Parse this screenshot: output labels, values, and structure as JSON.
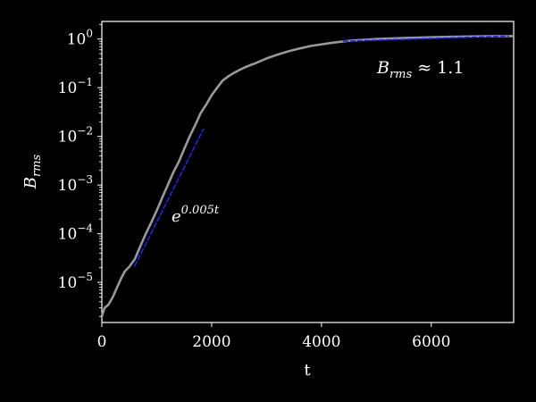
{
  "chart_data": {
    "type": "line",
    "title": "",
    "xlabel": "t",
    "ylabel": {
      "base": "B",
      "sub": "rms"
    },
    "yscale": "log",
    "xlim": [
      0,
      7500
    ],
    "ylim": [
      1.5e-06,
      2.3
    ],
    "xticks": [
      {
        "value": 0,
        "label": "0"
      },
      {
        "value": 2000,
        "label": "2000"
      },
      {
        "value": 4000,
        "label": "4000"
      },
      {
        "value": 6000,
        "label": "6000"
      }
    ],
    "yticks": [
      {
        "value": 1e-05,
        "base": "10",
        "exp": "−5"
      },
      {
        "value": 0.0001,
        "base": "10",
        "exp": "−4"
      },
      {
        "value": 0.001,
        "base": "10",
        "exp": "−3"
      },
      {
        "value": 0.01,
        "base": "10",
        "exp": "−2"
      },
      {
        "value": 0.1,
        "base": "10",
        "exp": "−1"
      },
      {
        "value": 1,
        "base": "10",
        "exp": "0"
      }
    ],
    "grid": false,
    "series": [
      {
        "color": "#999999",
        "x": [
          0,
          50,
          120,
          200,
          280,
          350,
          420,
          500,
          600,
          700,
          800,
          900,
          1000,
          1100,
          1200,
          1300,
          1400,
          1500,
          1600,
          1700,
          1800,
          1900,
          2000,
          2100,
          2200,
          2300,
          2400,
          2500,
          2600,
          2700,
          2800,
          3000,
          3200,
          3400,
          3600,
          3800,
          4000,
          4200,
          4500,
          5000,
          5500,
          6000,
          6500,
          7000,
          7500
        ],
        "y": [
          2e-06,
          3e-06,
          3.5e-06,
          5e-06,
          8e-06,
          1.2e-05,
          1.7e-05,
          2.1e-05,
          3e-05,
          5.5e-05,
          0.0001,
          0.00017,
          0.0003,
          0.00055,
          0.001,
          0.0018,
          0.003,
          0.0055,
          0.01,
          0.017,
          0.03,
          0.045,
          0.07,
          0.1,
          0.14,
          0.17,
          0.2,
          0.23,
          0.26,
          0.29,
          0.32,
          0.4,
          0.48,
          0.56,
          0.64,
          0.72,
          0.78,
          0.84,
          0.92,
          1.0,
          1.05,
          1.09,
          1.12,
          1.14,
          1.15
        ]
      },
      {
        "color": "#2020ff",
        "style": "dashed",
        "x": [
          600,
          1850
        ],
        "y": [
          2.2e-05,
          0.014
        ]
      },
      {
        "color": "#2020ff",
        "style": "dashed",
        "x": [
          4400,
          7400
        ],
        "y": [
          0.9,
          1.15
        ]
      }
    ],
    "annotations": [
      {
        "id": "growth",
        "base": "e",
        "exp": "0.005t"
      },
      {
        "id": "saturation",
        "text_base": "B",
        "text_sub": "rms",
        "text_rest": " ≈ 1.1"
      }
    ]
  }
}
